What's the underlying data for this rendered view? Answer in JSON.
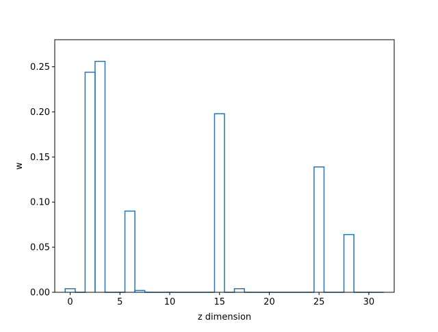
{
  "chart_data": {
    "type": "bar",
    "style": "step-outline",
    "xlabel": "z dimension",
    "ylabel": "w",
    "xlim": [
      -1.55,
      32.55
    ],
    "ylim": [
      0,
      0.28
    ],
    "xticks": [
      0,
      5,
      10,
      15,
      20,
      25,
      30
    ],
    "yticks": [
      0.0,
      0.05,
      0.1,
      0.15,
      0.2,
      0.25
    ],
    "xtick_labels": [
      "0",
      "5",
      "10",
      "15",
      "20",
      "25",
      "30"
    ],
    "ytick_labels": [
      "0.00",
      "0.05",
      "0.10",
      "0.15",
      "0.20",
      "0.25"
    ],
    "grid": false,
    "legend": "none",
    "categories": [
      0,
      1,
      2,
      3,
      4,
      5,
      6,
      7,
      8,
      9,
      10,
      11,
      12,
      13,
      14,
      15,
      16,
      17,
      18,
      19,
      20,
      21,
      22,
      23,
      24,
      25,
      26,
      27,
      28,
      29,
      30,
      31
    ],
    "values": [
      0.004,
      0,
      0.244,
      0.256,
      0,
      0,
      0.09,
      0.002,
      0,
      0,
      0,
      0,
      0,
      0,
      0,
      0.198,
      0,
      0.004,
      0,
      0,
      0,
      0,
      0,
      0,
      0,
      0.139,
      0,
      0,
      0.064,
      0,
      0,
      0
    ],
    "color": "#1f77b4"
  }
}
